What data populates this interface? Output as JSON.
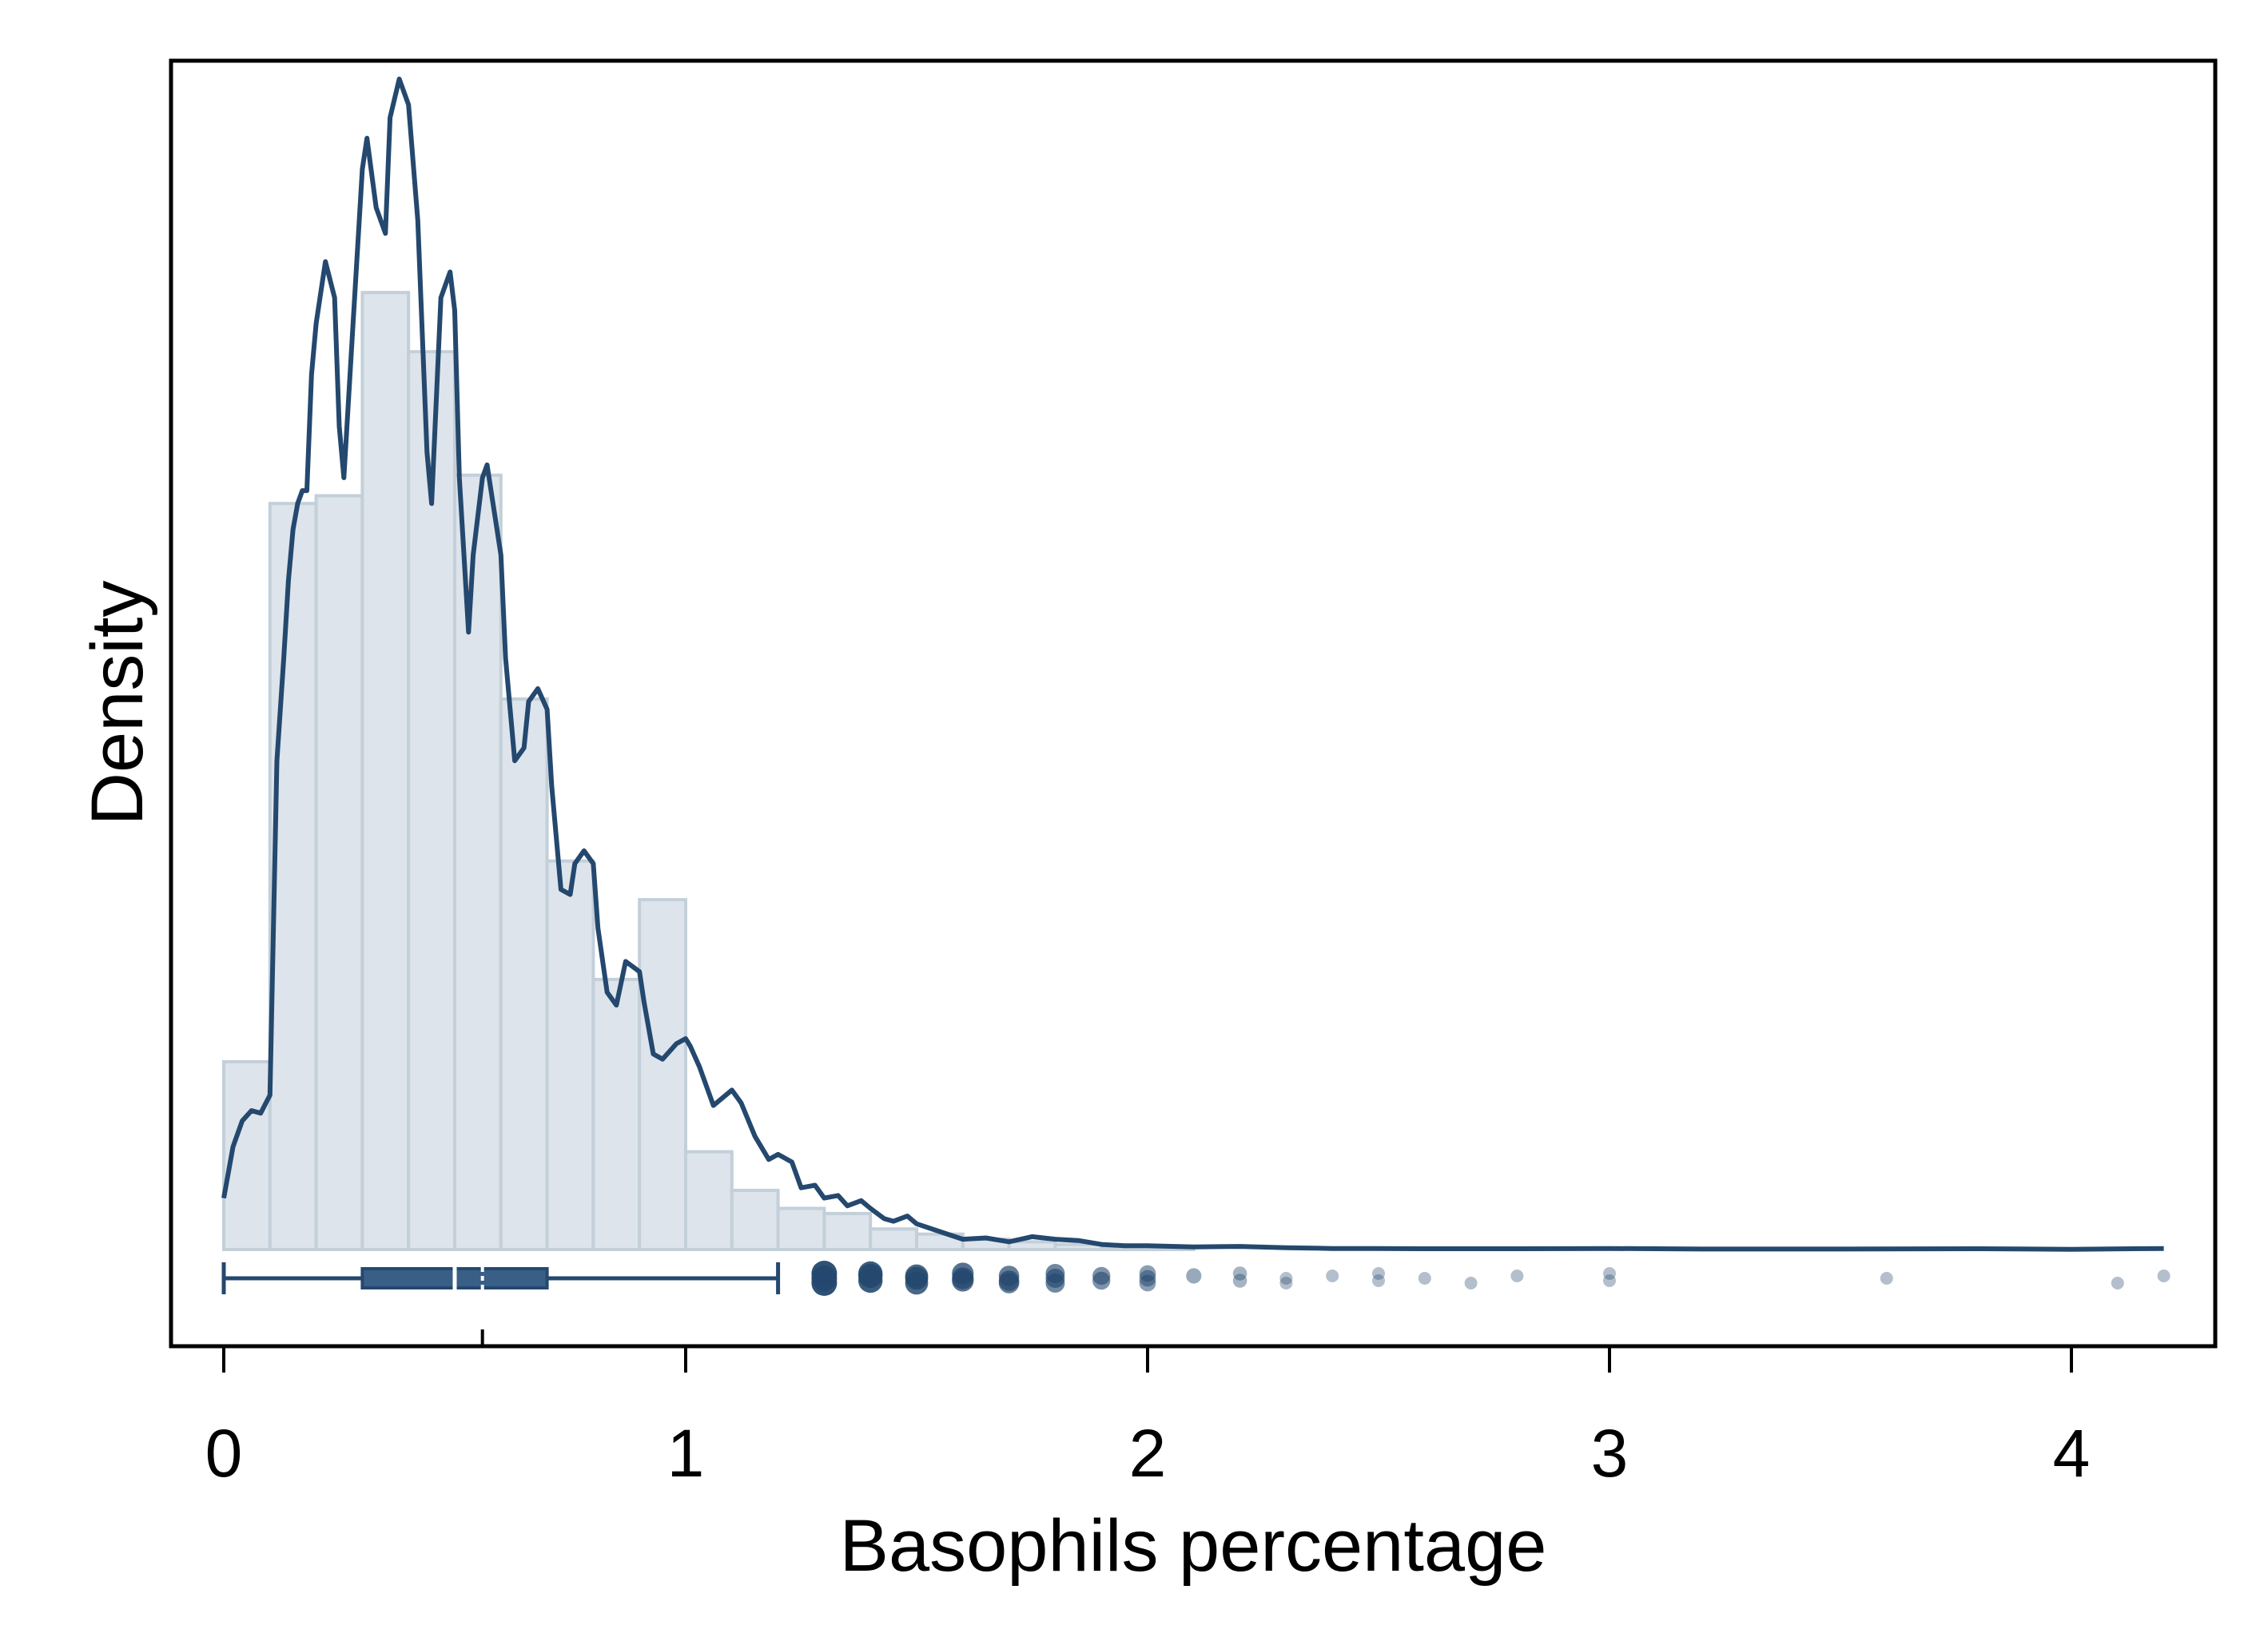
{
  "chart_data": {
    "type": "histogram",
    "xlabel": "Basophils percentage",
    "ylabel": "Density",
    "xlim": [
      -0.1,
      4.33
    ],
    "ylim": [
      -0.45,
      4.55
    ],
    "x_ticks": [
      0,
      1,
      2,
      3,
      4
    ],
    "x_tick_labels": [
      "0",
      "1",
      "2",
      "3",
      "4"
    ],
    "y_ticks": [],
    "grid": false,
    "colors": {
      "bar_fill": "#dde4eb",
      "bar_stroke": "#c3cfd9",
      "line": "#24486e",
      "box_fill": "#3a5f86",
      "outlier": "#24486e"
    },
    "histogram": {
      "bin_width": 0.1,
      "bin_starts": [
        0.0,
        0.1,
        0.2,
        0.3,
        0.4,
        0.5,
        0.6,
        0.7,
        0.8,
        0.9,
        1.0,
        1.1,
        1.2,
        1.3,
        1.4,
        1.5,
        1.6,
        1.7,
        1.8,
        1.9,
        2.0
      ],
      "density": [
        0.73,
        2.9,
        2.93,
        3.72,
        3.49,
        3.01,
        2.14,
        1.51,
        1.05,
        1.36,
        0.38,
        0.23,
        0.16,
        0.14,
        0.08,
        0.06,
        0.04,
        0.03,
        0.02,
        0.01,
        0.01
      ]
    },
    "kde": {
      "x": [
        0.0,
        0.02,
        0.04,
        0.06,
        0.08,
        0.1,
        0.115,
        0.13,
        0.14,
        0.15,
        0.16,
        0.17,
        0.18,
        0.19,
        0.2,
        0.22,
        0.24,
        0.25,
        0.26,
        0.28,
        0.3,
        0.31,
        0.33,
        0.35,
        0.36,
        0.38,
        0.4,
        0.42,
        0.44,
        0.45,
        0.47,
        0.49,
        0.5,
        0.51,
        0.53,
        0.54,
        0.56,
        0.57,
        0.6,
        0.61,
        0.63,
        0.65,
        0.66,
        0.68,
        0.7,
        0.71,
        0.73,
        0.75,
        0.76,
        0.78,
        0.8,
        0.81,
        0.83,
        0.85,
        0.87,
        0.9,
        0.91,
        0.93,
        0.95,
        0.98,
        1.0,
        1.01,
        1.03,
        1.06,
        1.1,
        1.12,
        1.15,
        1.18,
        1.2,
        1.23,
        1.25,
        1.28,
        1.3,
        1.33,
        1.35,
        1.38,
        1.4,
        1.43,
        1.45,
        1.48,
        1.5,
        1.55,
        1.6,
        1.65,
        1.7,
        1.75,
        1.8,
        1.85,
        1.9,
        1.95,
        2.0,
        2.1,
        2.2,
        2.3,
        2.4,
        2.5,
        2.6,
        2.8,
        3.0,
        3.2,
        3.5,
        3.8,
        4.0,
        4.2
      ],
      "y": [
        0.2,
        0.4,
        0.5,
        0.54,
        0.53,
        0.6,
        1.9,
        2.3,
        2.6,
        2.8,
        2.9,
        2.95,
        2.95,
        3.4,
        3.6,
        3.84,
        3.7,
        3.2,
        3.0,
        3.6,
        4.2,
        4.32,
        4.05,
        3.95,
        4.4,
        4.55,
        4.45,
        4.0,
        3.1,
        2.9,
        3.7,
        3.8,
        3.65,
        3.0,
        2.4,
        2.7,
        3.0,
        3.05,
        2.7,
        2.3,
        1.9,
        1.95,
        2.13,
        2.18,
        2.1,
        1.8,
        1.4,
        1.38,
        1.5,
        1.55,
        1.5,
        1.25,
        1.0,
        0.95,
        1.12,
        1.08,
        0.96,
        0.76,
        0.74,
        0.8,
        0.82,
        0.79,
        0.71,
        0.56,
        0.62,
        0.57,
        0.44,
        0.35,
        0.37,
        0.34,
        0.24,
        0.25,
        0.2,
        0.21,
        0.17,
        0.19,
        0.16,
        0.12,
        0.11,
        0.13,
        0.1,
        0.07,
        0.04,
        0.045,
        0.03,
        0.05,
        0.04,
        0.035,
        0.02,
        0.015,
        0.015,
        0.01,
        0.012,
        0.007,
        0.004,
        0.004,
        0.003,
        0.003,
        0.004,
        0.002,
        0.002,
        0.003,
        0.001,
        0.004
      ]
    },
    "boxplot": {
      "whisker_low": 0.0,
      "q1": 0.3,
      "median": 0.5,
      "mean": 0.56,
      "q3": 0.7,
      "whisker_high": 1.2,
      "outliers": [
        1.3,
        1.3,
        1.3,
        1.4,
        1.4,
        1.4,
        1.5,
        1.5,
        1.5,
        1.6,
        1.6,
        1.6,
        1.7,
        1.7,
        1.7,
        1.8,
        1.8,
        1.8,
        1.9,
        1.9,
        2.0,
        2.0,
        2.0,
        2.1,
        2.2,
        2.2,
        2.3,
        2.3,
        2.4,
        2.5,
        2.5,
        2.6,
        2.7,
        2.8,
        3.0,
        3.0,
        3.6,
        4.1,
        4.2
      ]
    }
  }
}
